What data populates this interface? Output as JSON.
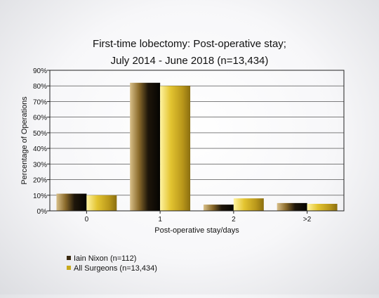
{
  "chart_data": {
    "type": "bar",
    "title": "First-time lobectomy: Post-operative stay;",
    "subtitle": "July 2014 - June 2018 (n=13,434)",
    "xlabel": "Post-operative stay/days",
    "ylabel": "Percentage of Operations",
    "categories": [
      "0",
      "1",
      "2",
      ">2"
    ],
    "ylim": [
      0,
      90
    ],
    "yticks": [
      0,
      10,
      20,
      30,
      40,
      50,
      60,
      70,
      80,
      90
    ],
    "ytick_format": "{v}%",
    "grid": true,
    "legend_position": "bottom-left",
    "series": [
      {
        "name": "Iain Nixon (n=112)",
        "values": [
          11,
          82,
          4,
          5
        ],
        "color": "#3a2a12"
      },
      {
        "name": "All Surgeons (n=13,434)",
        "values": [
          10,
          80,
          8,
          4.5
        ],
        "color": "#c8a91c"
      }
    ]
  }
}
